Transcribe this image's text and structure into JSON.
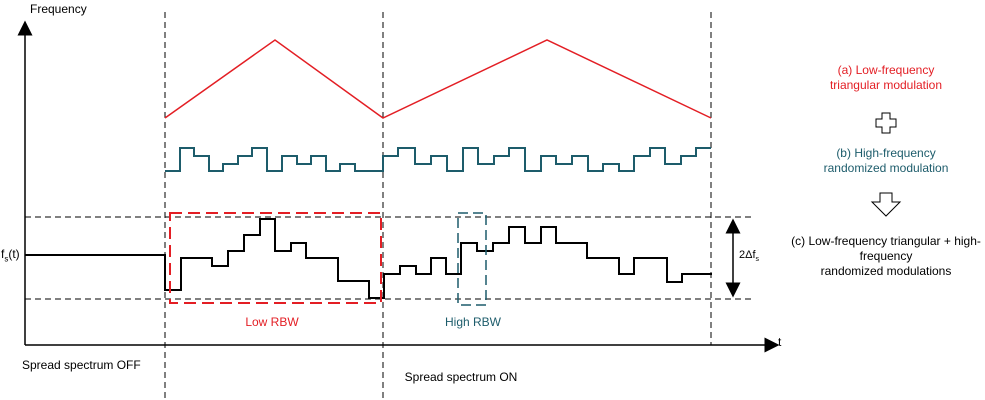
{
  "axes": {
    "y_label": "Frequency",
    "x_label": "t",
    "y_tick_label": "f",
    "y_tick_sub": "s",
    "y_tick_suffix": "(t)"
  },
  "spread_label": {
    "prefix": "2Δf",
    "sub": "s"
  },
  "regions": {
    "off": "Spread spectrum OFF",
    "on": "Spread spectrum ON"
  },
  "boxes": {
    "low": "Low RBW",
    "high": "High RBW"
  },
  "legend": {
    "a": {
      "line1": "(a)  Low-frequency",
      "line2": "triangular modulation"
    },
    "b": {
      "line1": "(b)  High-frequency",
      "line2": "randomized modulation"
    },
    "c": {
      "line1": "(c)  Low-frequency triangular + high-",
      "line2": "frequency",
      "line3": "randomized modulations"
    },
    "plus_icon": "plus-outline-icon",
    "arrow_icon": "down-arrow-outline-icon"
  },
  "colors": {
    "triangular": "#e31e24",
    "randomized": "#1d5c6b",
    "combined": "#000000"
  }
}
